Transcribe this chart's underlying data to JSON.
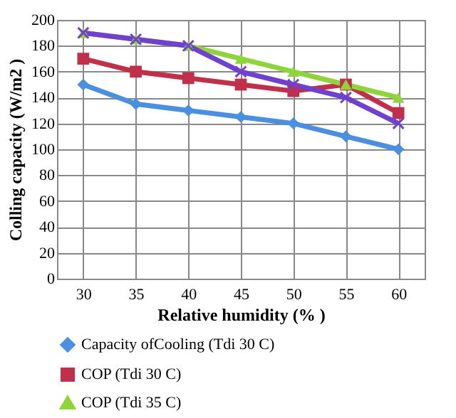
{
  "chart_data": {
    "type": "line",
    "xlabel": "Relative humidity (% )",
    "ylabel": "Colling capacity (W/m2 )",
    "categories": [
      "30",
      "35",
      "40",
      "45",
      "50",
      "55",
      "60"
    ],
    "series": [
      {
        "name": "Capacity ofCooling (Tdi 30 C)",
        "color": "#4a8fe0",
        "marker": "diamond",
        "values": [
          150,
          135,
          130,
          125,
          120,
          110,
          100
        ]
      },
      {
        "name": "COP (Tdi 30 C)",
        "color": "#c0304a",
        "marker": "square",
        "values": [
          170,
          160,
          155,
          150,
          145,
          150,
          128
        ]
      },
      {
        "name": "COP (Tdi 35 C)",
        "color": "#8fd43a",
        "marker": "triangle",
        "values": [
          190,
          185,
          180,
          170,
          160,
          150,
          140
        ]
      },
      {
        "color": "#7040d0",
        "marker": "cross",
        "values": [
          190,
          185,
          180,
          160,
          150,
          140,
          120
        ]
      }
    ],
    "ylim": [
      0,
      200
    ],
    "yticks": [
      0,
      20,
      40,
      60,
      80,
      100,
      120,
      140,
      160,
      180,
      200
    ],
    "grid": true,
    "legend": "bottom",
    "line_style": "solid"
  }
}
